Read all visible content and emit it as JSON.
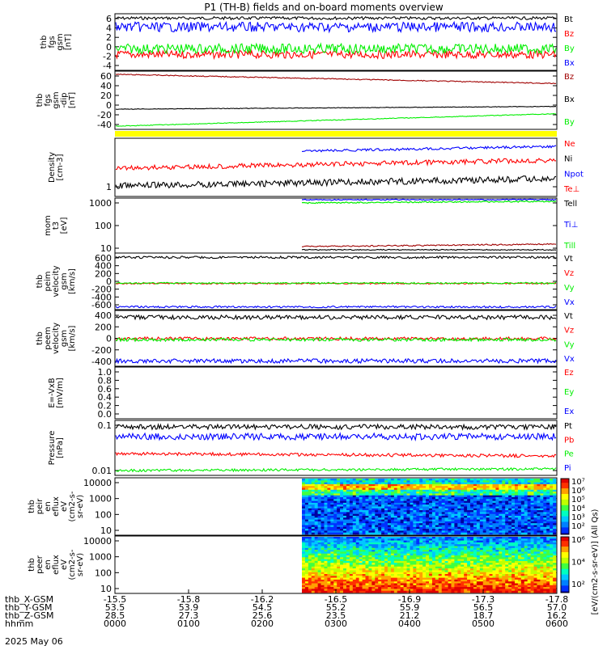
{
  "title": "P1 (TH-B) fields and on-board moments overview",
  "date_label": "2025 May 06",
  "colors": {
    "black": "#000000",
    "red": "#ff0000",
    "green": "#00ee00",
    "blue": "#0000ff",
    "darkred": "#a00000",
    "yellow": "#ffff00",
    "background": "#ffffff"
  },
  "chart_data": [
    {
      "type": "line",
      "panel": "fgs",
      "ylabel_lines": [
        "thb",
        "fgs",
        "gsm",
        "[nT]"
      ],
      "yticks": [
        "6",
        "4",
        "2",
        "0",
        "-2",
        "-4"
      ],
      "ylim": [
        -5,
        6.5
      ],
      "series": [
        {
          "name": "Bt",
          "color": "black",
          "base": 5.6,
          "noise": 0.3
        },
        {
          "name": "Bz",
          "color": "red",
          "base": -1.8,
          "noise": 0.8
        },
        {
          "name": "By",
          "color": "green",
          "base": -0.6,
          "noise": 1.0
        },
        {
          "name": "Bx",
          "color": "blue",
          "base": 3.8,
          "noise": 1.0
        }
      ]
    },
    {
      "type": "line",
      "panel": "fgs_dip",
      "ylabel_lines": [
        "thb",
        "fgs",
        "gsm",
        "-dip",
        "[nT]"
      ],
      "yticks": [
        "60",
        "40",
        "20",
        "0",
        "-20",
        "-40"
      ],
      "ylim": [
        -52,
        75
      ],
      "series": [
        {
          "name": "Bz",
          "color": "darkred",
          "base": 68,
          "end": 48,
          "noise": 1.0
        },
        {
          "name": "Bx",
          "color": "black",
          "base": -8,
          "end": -2,
          "noise": 0.6
        },
        {
          "name": "By",
          "color": "green",
          "base": -45,
          "end": -18,
          "noise": 0.8
        }
      ]
    },
    {
      "type": "line",
      "panel": "density",
      "ylabel_lines": [
        "Density",
        "[cm-3]"
      ],
      "yticks": [
        "1"
      ],
      "log": true,
      "series": [
        {
          "name": "Ne",
          "color": "red",
          "base": 0.55
        },
        {
          "name": "Ni",
          "color": "black",
          "base": 0.15
        },
        {
          "name": "Npot",
          "color": "blue",
          "base": 0.8
        },
        {
          "name": "Te⊥",
          "color": "red"
        }
      ]
    },
    {
      "type": "line",
      "panel": "temperature",
      "ylabel_lines": [
        "mom",
        "t3",
        "[eV]"
      ],
      "yticks": [
        "1000",
        "100",
        "10"
      ],
      "log": true,
      "series": [
        {
          "name": "Tell",
          "color": "black"
        },
        {
          "name": "Ti⊥",
          "color": "blue"
        },
        {
          "name": "Till",
          "color": "green"
        }
      ]
    },
    {
      "type": "line",
      "panel": "peim_velocity",
      "ylabel_lines": [
        "thb",
        "peim",
        "velocity",
        "gsm",
        "[km/s]"
      ],
      "yticks": [
        "600",
        "400",
        "200",
        "0",
        "-200",
        "-400",
        "-600"
      ],
      "ylim": [
        -700,
        750
      ],
      "series": [
        {
          "name": "Vt",
          "color": "black",
          "base": 640,
          "noise": 30
        },
        {
          "name": "Vz",
          "color": "red",
          "base": -30,
          "noise": 15
        },
        {
          "name": "Vy",
          "color": "green",
          "base": -20,
          "noise": 20
        },
        {
          "name": "Vx",
          "color": "blue",
          "base": -630,
          "noise": 25
        }
      ]
    },
    {
      "type": "line",
      "panel": "peem_velocity",
      "ylabel_lines": [
        "thb",
        "peem",
        "velocity",
        "gsm",
        "[km/s]"
      ],
      "yticks": [
        "400",
        "200",
        "0",
        "-200",
        "-400"
      ],
      "ylim": [
        -500,
        550
      ],
      "series": [
        {
          "name": "Vt",
          "color": "black",
          "base": 420,
          "noise": 40
        },
        {
          "name": "Vz",
          "color": "red",
          "base": 20,
          "noise": 30
        },
        {
          "name": "Vy",
          "color": "green",
          "base": 0,
          "noise": 30
        },
        {
          "name": "Vx",
          "color": "blue",
          "base": -400,
          "noise": 40
        }
      ]
    },
    {
      "type": "line",
      "panel": "efield",
      "ylabel_lines": [
        "E=-VxB",
        "[mV/m]"
      ],
      "yticks": [
        "1.0",
        "0.8",
        "0.6",
        "0.4",
        "0.2",
        "0.0"
      ],
      "ylim": [
        -0.05,
        1.05
      ],
      "series": [
        {
          "name": "Ez",
          "color": "red"
        },
        {
          "name": "Ey",
          "color": "green"
        },
        {
          "name": "Ex",
          "color": "blue"
        }
      ]
    },
    {
      "type": "line",
      "panel": "pressure",
      "ylabel_lines": [
        "Pressure",
        "[nPa]"
      ],
      "yticks": [
        "0.1",
        "0.01"
      ],
      "log": true,
      "series": [
        {
          "name": "Pt",
          "color": "black"
        },
        {
          "name": "Pb",
          "color": "red"
        },
        {
          "name": "Pe",
          "color": "green"
        },
        {
          "name": "Pi",
          "color": "blue"
        }
      ]
    },
    {
      "type": "heatmap",
      "panel": "peir",
      "ylabel_lines": [
        "thb",
        "peir",
        "en",
        "eflux",
        "eV",
        "(cm2-s-",
        "sr-eV)"
      ],
      "yticks": [
        "10000",
        "1000",
        "100",
        "10"
      ],
      "log": true,
      "colorbar_ticks": [
        "10⁷",
        "10⁶",
        "10⁵",
        "10⁴",
        "10³",
        "10²"
      ],
      "colorbar_label": "[eV/(cm2-s-sr-eV)] (All Qs)"
    },
    {
      "type": "heatmap",
      "panel": "peer",
      "ylabel_lines": [
        "thb",
        "peer",
        "en",
        "eflux",
        "eV",
        "(cm2-s-",
        "sr-eV)"
      ],
      "yticks": [
        "10000",
        "1000",
        "100",
        "10"
      ],
      "log": true,
      "colorbar_ticks": [
        "10⁶",
        "10⁴",
        "10²"
      ]
    }
  ],
  "x_axis": {
    "row_labels": [
      "thb_X-GSM",
      "thb_Y-GSM",
      "thb_Z-GSM",
      "hhmm"
    ],
    "columns": [
      [
        "-15.5",
        "53.5",
        "28.5",
        "0000"
      ],
      [
        "-15.8",
        "53.9",
        "27.3",
        "0100"
      ],
      [
        "-16.2",
        "54.5",
        "25.6",
        "0200"
      ],
      [
        "-16.5",
        "55.2",
        "23.5",
        "0300"
      ],
      [
        "-16.9",
        "55.9",
        "21.2",
        "0400"
      ],
      [
        "-17.3",
        "56.5",
        "18.7",
        "0500"
      ],
      [
        "-17.8",
        "57.0",
        "16.2",
        "0600"
      ]
    ]
  }
}
